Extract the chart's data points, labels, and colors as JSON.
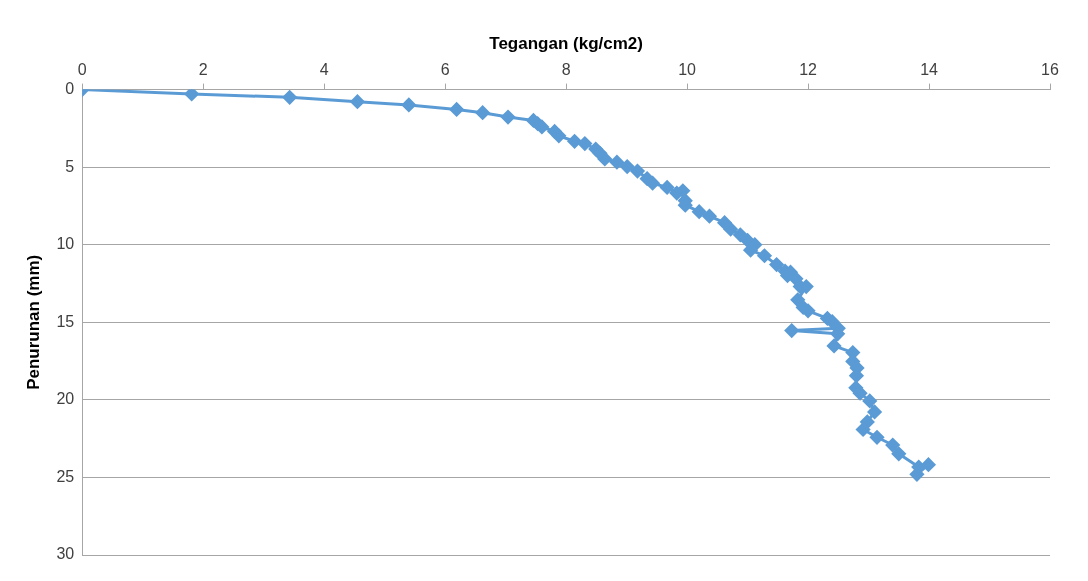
{
  "chart_data": {
    "type": "line",
    "xlabel": "Tegangan (kg/cm2)",
    "ylabel": "Penurunan (mm)",
    "xlim": [
      0,
      16
    ],
    "xticks": [
      0,
      2,
      4,
      6,
      8,
      10,
      12,
      14,
      16
    ],
    "ylim": [
      30,
      0
    ],
    "yticks": [
      0,
      5,
      10,
      15,
      20,
      25,
      30
    ],
    "grid": "y",
    "legend": false,
    "marker": "diamond",
    "line_style": "solid",
    "series": [
      {
        "color": "#5b9bd5",
        "x": [
          0,
          1.81,
          3.43,
          4.55,
          5.4,
          6.19,
          6.62,
          7.04,
          7.46,
          7.53,
          7.6,
          7.81,
          7.88,
          8.14,
          8.31,
          8.49,
          8.56,
          8.64,
          8.84,
          9.01,
          9.18,
          9.34,
          9.43,
          9.67,
          9.83,
          9.93,
          9.97,
          9.97,
          10.2,
          10.37,
          10.62,
          10.72,
          10.88,
          11.0,
          11.12,
          11.05,
          11.28,
          11.48,
          11.62,
          11.66,
          11.71,
          11.8,
          11.87,
          11.97,
          11.83,
          11.92,
          12.0,
          12.32,
          12.4,
          12.5,
          11.73,
          12.49,
          12.43,
          12.74,
          12.74,
          12.81,
          12.8,
          12.79,
          12.86,
          13.02,
          13.1,
          12.98,
          12.91,
          13.14,
          13.4,
          13.5,
          13.83,
          13.99,
          13.8
        ],
        "values": [
          0,
          0.28,
          0.5,
          0.78,
          0.99,
          1.28,
          1.49,
          1.77,
          1.99,
          2.2,
          2.41,
          2.7,
          2.98,
          3.33,
          3.48,
          3.83,
          4.11,
          4.47,
          4.68,
          4.96,
          5.25,
          5.74,
          6.03,
          6.31,
          6.67,
          6.52,
          7.16,
          7.45,
          7.87,
          8.16,
          8.58,
          9.0,
          9.36,
          9.72,
          10.0,
          10.35,
          10.71,
          11.28,
          11.7,
          11.99,
          11.77,
          12.2,
          12.7,
          12.7,
          13.55,
          14.04,
          14.26,
          14.75,
          14.96,
          15.39,
          15.53,
          15.74,
          16.52,
          16.95,
          17.52,
          17.94,
          18.44,
          19.22,
          19.57,
          20.07,
          20.78,
          21.42,
          21.91,
          22.41,
          22.91,
          23.48,
          24.33,
          24.18,
          24.8
        ]
      }
    ]
  }
}
